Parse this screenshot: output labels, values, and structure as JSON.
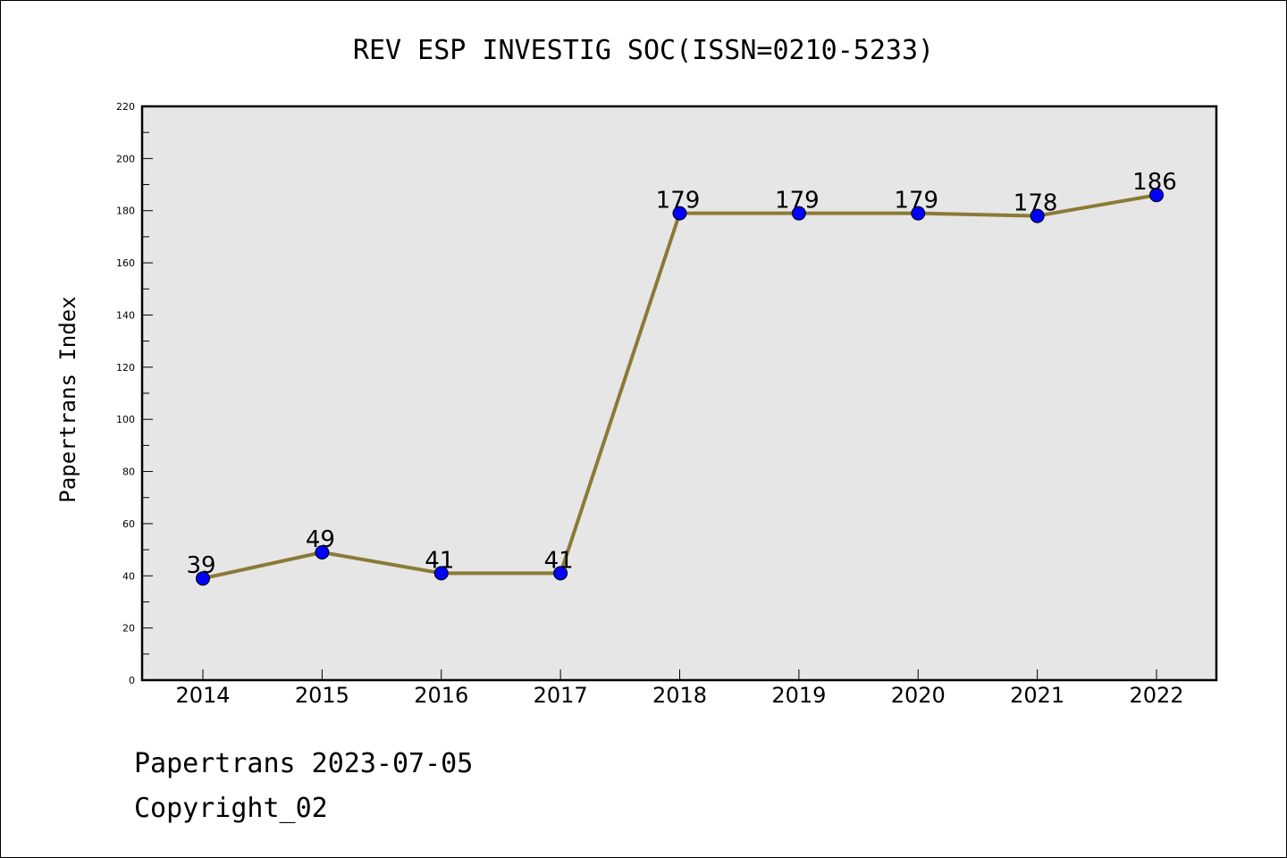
{
  "chart_data": {
    "type": "line",
    "title": "REV ESP INVESTIG SOC(ISSN=0210-5233)",
    "xlabel": "",
    "ylabel": "Papertrans Index",
    "categories": [
      "2014",
      "2015",
      "2016",
      "2017",
      "2018",
      "2019",
      "2020",
      "2021",
      "2022"
    ],
    "series": [
      {
        "values": [
          39,
          49,
          41,
          41,
          179,
          179,
          179,
          178,
          186
        ]
      }
    ],
    "ylim": [
      0,
      220
    ],
    "yticks": [
      "0",
      "20",
      "40",
      "60",
      "80",
      "100",
      "120",
      "140",
      "160",
      "180",
      "200",
      "220"
    ],
    "grid": false,
    "colors": {
      "line": "#8b7a36",
      "marker": "#0000ff",
      "plot_background": "#e6e6e6"
    }
  },
  "footer": {
    "line1": "Papertrans 2023-07-05",
    "line2": "Copyright_02"
  }
}
